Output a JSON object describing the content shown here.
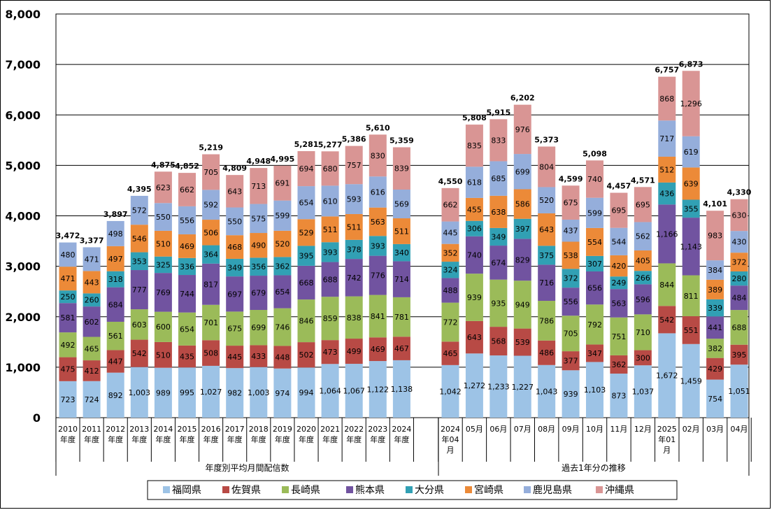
{
  "chart_data": {
    "type": "bar",
    "stacked": true,
    "ylim": [
      0,
      8000
    ],
    "yticks": [
      "0",
      "1,000",
      "2,000",
      "3,000",
      "4,000",
      "5,000",
      "6,000",
      "7,000",
      "8,000"
    ],
    "grid": true,
    "legend_position": "bottom",
    "groups": [
      "年度別平均月間配信数",
      "過去1年分の推移"
    ],
    "categories": [
      [
        "2010",
        "年度"
      ],
      [
        "2011",
        "年度"
      ],
      [
        "2012",
        "年度"
      ],
      [
        "2013",
        "年度"
      ],
      [
        "2014",
        "年度"
      ],
      [
        "2015",
        "年度"
      ],
      [
        "2016",
        "年度"
      ],
      [
        "2017",
        "年度"
      ],
      [
        "2018",
        "年度"
      ],
      [
        "2019",
        "年度"
      ],
      [
        "2020",
        "年度"
      ],
      [
        "2021",
        "年度"
      ],
      [
        "2022",
        "年度"
      ],
      [
        "2023",
        "年度"
      ],
      [
        "2024",
        "年度"
      ],
      [
        "2024",
        "年04",
        "月"
      ],
      [
        "05月"
      ],
      [
        "06月"
      ],
      [
        "07月"
      ],
      [
        "08月"
      ],
      [
        "09月"
      ],
      [
        "10月"
      ],
      [
        "11月"
      ],
      [
        "12月"
      ],
      [
        "2025",
        "年01",
        "月"
      ],
      [
        "02月"
      ],
      [
        "03月"
      ],
      [
        "04月"
      ]
    ],
    "totals": [
      "3,472",
      "3,377",
      "3,897",
      "4,395",
      "4,875",
      "4,852",
      "5,219",
      "4,809",
      "4,948",
      "4,995",
      "5,281",
      "5,277",
      "5,386",
      "5,610",
      "5,359",
      "4,550",
      "5,808",
      "5,915",
      "6,202",
      "5,373",
      "4,599",
      "5,098",
      "4,457",
      "4,571",
      "6,757",
      "6,873",
      "4,101",
      "4,330"
    ],
    "series": [
      {
        "name": "福岡県",
        "color": "#9DC3E6",
        "values": [
          723,
          724,
          892,
          1003,
          989,
          995,
          1027,
          982,
          1003,
          974,
          994,
          1064,
          1067,
          1122,
          1138,
          1042,
          1272,
          1233,
          1227,
          1043,
          939,
          1103,
          873,
          1037,
          1672,
          1459,
          754,
          1051
        ]
      },
      {
        "name": "佐賀県",
        "color": "#B84A45",
        "values": [
          475,
          412,
          447,
          542,
          510,
          435,
          508,
          445,
          433,
          448,
          502,
          473,
          499,
          469,
          467,
          465,
          643,
          568,
          539,
          486,
          377,
          347,
          362,
          300,
          542,
          551,
          429,
          395
        ]
      },
      {
        "name": "長崎県",
        "color": "#9BBB59",
        "values": [
          492,
          465,
          561,
          603,
          600,
          654,
          701,
          675,
          699,
          746,
          846,
          859,
          838,
          841,
          781,
          772,
          939,
          935,
          949,
          786,
          705,
          792,
          751,
          710,
          844,
          811,
          382,
          688
        ]
      },
      {
        "name": "熊本県",
        "color": "#7153A0",
        "values": [
          581,
          602,
          684,
          777,
          769,
          744,
          817,
          697,
          679,
          654,
          668,
          688,
          742,
          776,
          714,
          488,
          740,
          674,
          829,
          716,
          556,
          656,
          563,
          596,
          1166,
          1143,
          441,
          484
        ]
      },
      {
        "name": "大分県",
        "color": "#31A0B4",
        "values": [
          250,
          260,
          318,
          353,
          325,
          336,
          364,
          349,
          356,
          362,
          395,
          393,
          378,
          393,
          340,
          324,
          306,
          349,
          397,
          375,
          372,
          307,
          249,
          266,
          436,
          355,
          339,
          280
        ]
      },
      {
        "name": "宮崎県",
        "color": "#EC8A38",
        "values": [
          471,
          443,
          497,
          546,
          510,
          469,
          506,
          468,
          490,
          520,
          529,
          511,
          511,
          563,
          511,
          352,
          455,
          638,
          586,
          643,
          538,
          554,
          420,
          405,
          512,
          639,
          389,
          372
        ]
      },
      {
        "name": "鹿児島県",
        "color": "#95AEDB",
        "values": [
          480,
          471,
          498,
          572,
          550,
          556,
          592,
          550,
          575,
          599,
          654,
          610,
          593,
          616,
          569,
          445,
          618,
          685,
          699,
          520,
          437,
          599,
          544,
          562,
          717,
          619,
          384,
          430
        ]
      },
      {
        "name": "沖縄県",
        "color": "#D99594",
        "values": [
          null,
          null,
          null,
          null,
          623,
          662,
          705,
          643,
          713,
          691,
          694,
          680,
          757,
          830,
          839,
          662,
          835,
          833,
          976,
          804,
          675,
          740,
          695,
          695,
          868,
          1296,
          983,
          630
        ]
      }
    ]
  }
}
